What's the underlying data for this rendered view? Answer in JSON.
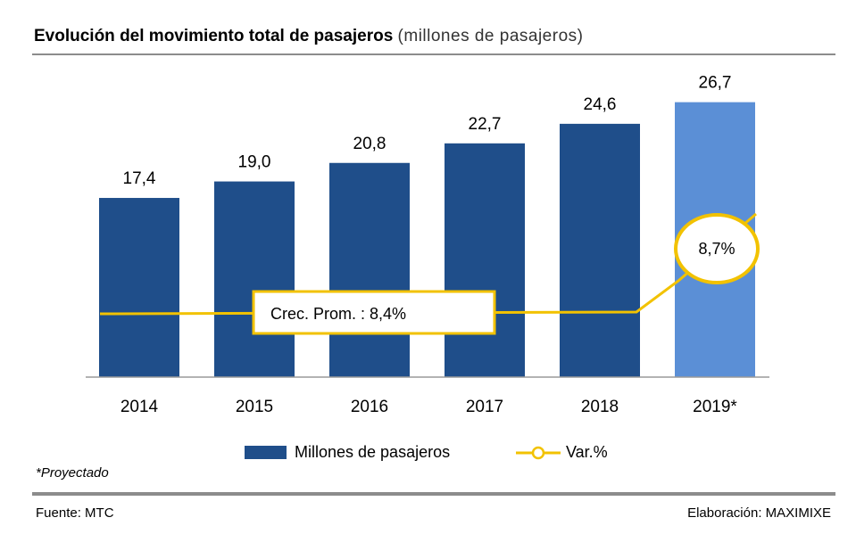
{
  "title": {
    "main": "Evolución del movimiento total de pasajeros",
    "sub": "(millones de pasajeros)"
  },
  "chart_data": {
    "type": "bar",
    "categories": [
      "2014",
      "2015",
      "2016",
      "2017",
      "2018",
      "2019*"
    ],
    "series": [
      {
        "name": "Millones de pasajeros",
        "values": [
          17.4,
          19.0,
          20.8,
          22.7,
          24.6,
          26.7
        ],
        "labels": [
          "17,4",
          "19,0",
          "20,8",
          "22,7",
          "24,6",
          "26,7"
        ],
        "color": "#1f4e8a",
        "projected_color": "#5b8fd6",
        "projected_index": 5
      },
      {
        "name": "Var.%",
        "type": "line",
        "color": "#f2c200"
      }
    ],
    "ylim": [
      0,
      30
    ],
    "annotations": {
      "average": "Crec. Prom. : 8,4%",
      "last_var": "8,7%"
    },
    "legend_position": "bottom"
  },
  "footnote": "*Proyectado",
  "source": "Fuente: MTC",
  "credit": "Elaboración: MAXIMIXE"
}
